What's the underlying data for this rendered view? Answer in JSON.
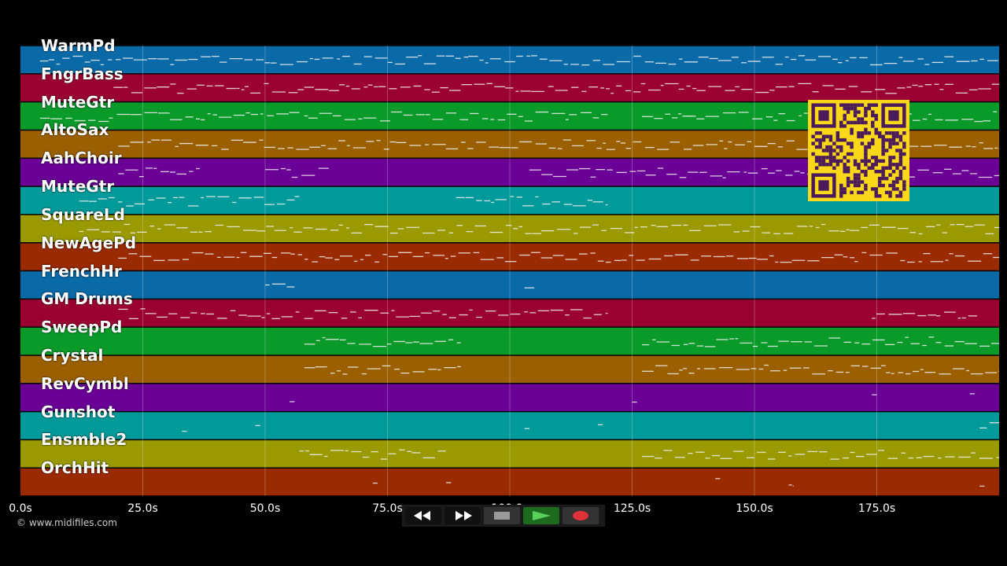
{
  "tracks": [
    {
      "name": "WarmPd",
      "color": "#0a6aa8"
    },
    {
      "name": "FngrBass",
      "color": "#9b0033"
    },
    {
      "name": "MuteGtr",
      "color": "#0a9a2a"
    },
    {
      "name": "AltoSax",
      "color": "#9a6000"
    },
    {
      "name": "AahChoir",
      "color": "#6a0096"
    },
    {
      "name": "MuteGtr",
      "color": "#009a9a"
    },
    {
      "name": "SquareLd",
      "color": "#9a9a00"
    },
    {
      "name": "NewAgePd",
      "color": "#9a2a00"
    },
    {
      "name": "FrenchHr",
      "color": "#0a6aa8"
    },
    {
      "name": "GM Drums",
      "color": "#9b0033"
    },
    {
      "name": "SweepPd",
      "color": "#0a9a2a"
    },
    {
      "name": "Crystal",
      "color": "#9a6000"
    },
    {
      "name": "RevCymbl",
      "color": "#6a0096"
    },
    {
      "name": "Gunshot",
      "color": "#009a9a"
    },
    {
      "name": "Ensmble2",
      "color": "#9a9a00"
    },
    {
      "name": "OrchHit",
      "color": "#9a2a00"
    }
  ],
  "time_axis": {
    "max_seconds": 200,
    "ticks": [
      "0.0s",
      "25.0s",
      "50.0s",
      "75.0s",
      "100.0s",
      "125.0s",
      "150.0s",
      "175.0s"
    ],
    "tick_values": [
      0,
      25,
      50,
      75,
      100,
      125,
      150,
      175
    ]
  },
  "copyright": "© www.midifiles.com",
  "transport": {
    "rewind": "rewind-icon",
    "fast_forward": "fast-forward-icon",
    "stop": "stop-icon",
    "play": "play-icon",
    "record": "record-icon"
  },
  "qr_code": "qr-code"
}
